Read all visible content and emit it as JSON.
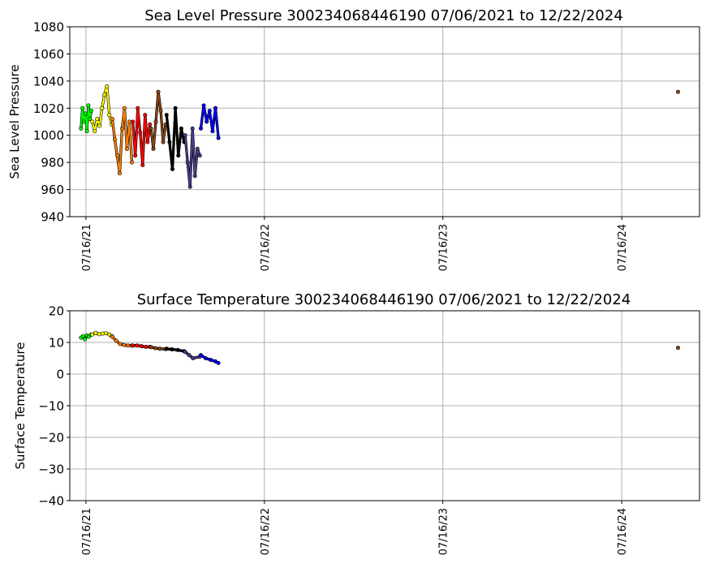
{
  "colors": {
    "segments": [
      "#00ff00",
      "#ffff00",
      "#ff8000",
      "#ff0000",
      "#8b4513",
      "#000000",
      "#483d8b",
      "#0000ff"
    ],
    "grid": "#b0b0b0"
  },
  "chart_data": [
    {
      "type": "scatter",
      "title": "Sea Level Pressure 300234068446190  07/06/2021 to 12/22/2024",
      "xlabel": "",
      "ylabel": "Sea Level Pressure",
      "ylim": [
        940,
        1080
      ],
      "yticks": [
        940,
        960,
        980,
        1000,
        1020,
        1040,
        1060,
        1080
      ],
      "xticks": [
        "2021-07-16",
        "2022-07-16",
        "2023-07-16",
        "2024-07-16"
      ],
      "xtick_labels": [
        "07/16/21",
        "07/16/22",
        "07/16/23",
        "07/16/24"
      ],
      "xlim": [
        "2021-06-13",
        "2024-12-22"
      ],
      "grid": true,
      "series": [
        {
          "color": "#00ff00",
          "x": [
            "2021-07-06",
            "2021-07-09",
            "2021-07-12",
            "2021-07-15",
            "2021-07-18",
            "2021-07-21",
            "2021-07-24",
            "2021-07-27"
          ],
          "y": [
            1005,
            1020,
            1010,
            1016,
            1003,
            1022,
            1012,
            1018
          ]
        },
        {
          "color": "#ffff00",
          "x": [
            "2021-07-29",
            "2021-08-03",
            "2021-08-08",
            "2021-08-13",
            "2021-08-18",
            "2021-08-23",
            "2021-08-28",
            "2021-09-02",
            "2021-09-07"
          ],
          "y": [
            1010,
            1003,
            1012,
            1007,
            1020,
            1030,
            1036,
            1015,
            1008
          ]
        },
        {
          "color": "#ff8000",
          "x": [
            "2021-09-08",
            "2021-09-13",
            "2021-09-18",
            "2021-09-23",
            "2021-09-28",
            "2021-10-03",
            "2021-10-08",
            "2021-10-13",
            "2021-10-18"
          ],
          "y": [
            1012,
            997,
            985,
            972,
            1005,
            1020,
            990,
            1010,
            980
          ]
        },
        {
          "color": "#ff0000",
          "x": [
            "2021-10-20",
            "2021-10-25",
            "2021-10-30",
            "2021-11-04",
            "2021-11-09",
            "2021-11-14",
            "2021-11-19",
            "2021-11-24"
          ],
          "y": [
            1010,
            985,
            1020,
            1002,
            978,
            1015,
            995,
            1008
          ]
        },
        {
          "color": "#8b4513",
          "x": [
            "2021-11-26",
            "2021-12-01",
            "2021-12-06",
            "2021-12-11",
            "2021-12-16",
            "2021-12-21",
            "2021-12-26"
          ],
          "y": [
            1005,
            990,
            1010,
            1032,
            1018,
            995,
            1008
          ]
        },
        {
          "color": "#000000",
          "x": [
            "2021-12-28",
            "2022-01-03",
            "2022-01-09",
            "2022-01-15",
            "2022-01-21",
            "2022-01-27",
            "2022-02-02"
          ],
          "y": [
            1015,
            995,
            975,
            1020,
            985,
            1005,
            995
          ]
        },
        {
          "color": "#483d8b",
          "x": [
            "2022-02-04",
            "2022-02-09",
            "2022-02-14",
            "2022-02-19",
            "2022-02-24",
            "2022-03-01",
            "2022-03-06"
          ],
          "y": [
            1000,
            980,
            962,
            1005,
            970,
            990,
            985
          ]
        },
        {
          "color": "#0000ff",
          "x": [
            "2022-03-08",
            "2022-03-14",
            "2022-03-20",
            "2022-03-26",
            "2022-04-01",
            "2022-04-07",
            "2022-04-13"
          ],
          "y": [
            1005,
            1022,
            1010,
            1018,
            1003,
            1020,
            998
          ]
        },
        {
          "color": "#8b4513",
          "x": [
            "2024-11-08"
          ],
          "y": [
            1032
          ]
        }
      ]
    },
    {
      "type": "scatter",
      "title": "Surface Temperature 300234068446190  07/06/2021 to 12/22/2024",
      "xlabel": "",
      "ylabel": "Surface Temperature",
      "ylim": [
        -40,
        20
      ],
      "yticks": [
        -40,
        -30,
        -20,
        -10,
        0,
        10,
        20
      ],
      "xticks": [
        "2021-07-16",
        "2022-07-16",
        "2023-07-16",
        "2024-07-16"
      ],
      "xtick_labels": [
        "07/16/21",
        "07/16/22",
        "07/16/23",
        "07/16/24"
      ],
      "xlim": [
        "2021-06-13",
        "2024-12-22"
      ],
      "grid": true,
      "series": [
        {
          "color": "#00ff00",
          "x": [
            "2021-07-06",
            "2021-07-10",
            "2021-07-14",
            "2021-07-18",
            "2021-07-22",
            "2021-07-27"
          ],
          "y": [
            11.5,
            12.0,
            11.0,
            12.2,
            11.8,
            12.5
          ]
        },
        {
          "color": "#ffff00",
          "x": [
            "2021-07-29",
            "2021-08-05",
            "2021-08-12",
            "2021-08-19",
            "2021-08-26",
            "2021-09-02",
            "2021-09-07"
          ],
          "y": [
            12.5,
            13.0,
            12.6,
            12.8,
            12.9,
            12.5,
            12.0
          ]
        },
        {
          "color": "#ff8000",
          "x": [
            "2021-09-08",
            "2021-09-16",
            "2021-09-24",
            "2021-10-02",
            "2021-10-10",
            "2021-10-18"
          ],
          "y": [
            11.8,
            10.5,
            9.5,
            9.2,
            9.0,
            9.0
          ]
        },
        {
          "color": "#ff0000",
          "x": [
            "2021-10-20",
            "2021-10-29",
            "2021-11-07",
            "2021-11-16",
            "2021-11-24"
          ],
          "y": [
            9.0,
            9.0,
            8.8,
            8.6,
            8.6
          ]
        },
        {
          "color": "#8b4513",
          "x": [
            "2021-11-26",
            "2021-12-05",
            "2021-12-14",
            "2021-12-26"
          ],
          "y": [
            8.5,
            8.2,
            8.0,
            7.9
          ]
        },
        {
          "color": "#000000",
          "x": [
            "2021-12-28",
            "2022-01-08",
            "2022-01-20",
            "2022-02-02"
          ],
          "y": [
            8.0,
            7.8,
            7.6,
            7.2
          ]
        },
        {
          "color": "#483d8b",
          "x": [
            "2022-02-04",
            "2022-02-12",
            "2022-02-20",
            "2022-03-06"
          ],
          "y": [
            7.0,
            6.0,
            5.0,
            5.5
          ]
        },
        {
          "color": "#0000ff",
          "x": [
            "2022-03-08",
            "2022-03-18",
            "2022-03-28",
            "2022-04-07",
            "2022-04-13"
          ],
          "y": [
            6.0,
            5.0,
            4.5,
            4.0,
            3.5
          ]
        },
        {
          "color": "#8b4513",
          "x": [
            "2024-11-08"
          ],
          "y": [
            8.3
          ]
        }
      ]
    }
  ]
}
